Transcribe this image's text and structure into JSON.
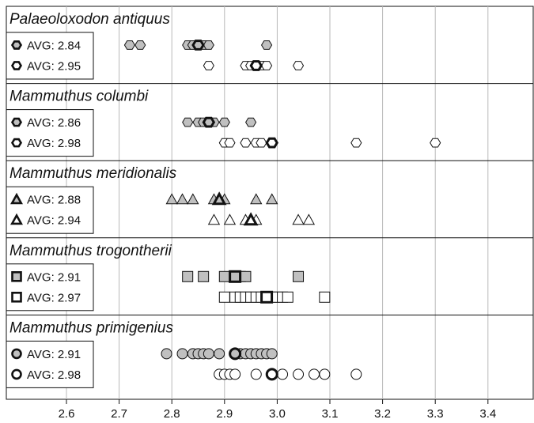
{
  "chart_data": {
    "type": "scatter",
    "title": "",
    "xlabel": "",
    "ylabel": "",
    "xlim": [
      2.5,
      3.5
    ],
    "xticks": [
      2.6,
      2.7,
      2.8,
      2.9,
      3.0,
      3.1,
      3.2,
      3.3,
      3.4
    ],
    "tick_labels": [
      "2.6",
      "2.7",
      "2.8",
      "2.9",
      "3.0",
      "3.1",
      "3.2",
      "3.3",
      "3.4"
    ],
    "grid": "vertical",
    "colors": {
      "filled": "#c0c0c0",
      "open": "#ffffff",
      "stroke": "#111111",
      "grid": "#b8b8b8"
    },
    "groups": [
      {
        "species": "Palaeoloxodon antiquus",
        "marker": "hexagon",
        "series": [
          {
            "legend": "AVG: 2.84",
            "avg": 2.85,
            "fill": "filled",
            "values": [
              2.72,
              2.74,
              2.83,
              2.84,
              2.86,
              2.87,
              2.98
            ]
          },
          {
            "legend": "AVG: 2.95",
            "avg": 2.96,
            "fill": "open",
            "values": [
              2.87,
              2.94,
              2.95,
              2.96,
              2.97,
              2.98,
              3.04
            ]
          }
        ]
      },
      {
        "species": "Mammuthus columbi",
        "marker": "hexagon",
        "series": [
          {
            "legend": "AVG: 2.86",
            "avg": 2.87,
            "fill": "filled",
            "values": [
              2.83,
              2.85,
              2.86,
              2.88,
              2.9,
              2.95
            ]
          },
          {
            "legend": "AVG: 2.98",
            "avg": 2.99,
            "fill": "open",
            "values": [
              2.9,
              2.91,
              2.94,
              2.96,
              2.97,
              2.99,
              3.15,
              3.3
            ]
          }
        ]
      },
      {
        "species": "Mammuthus meridionalis",
        "marker": "triangle",
        "series": [
          {
            "legend": "AVG: 2.88",
            "avg": 2.89,
            "fill": "filled",
            "values": [
              2.8,
              2.82,
              2.84,
              2.88,
              2.89,
              2.9,
              2.96,
              2.99
            ]
          },
          {
            "legend": "AVG: 2.94",
            "avg": 2.95,
            "fill": "open",
            "values": [
              2.88,
              2.91,
              2.94,
              2.95,
              2.96,
              3.04,
              3.06
            ]
          }
        ]
      },
      {
        "species": "Mammuthus trogontherii",
        "marker": "square",
        "series": [
          {
            "legend": "AVG: 2.91",
            "avg": 2.92,
            "fill": "filled",
            "values": [
              2.83,
              2.86,
              2.9,
              2.92,
              2.93,
              2.94,
              3.04
            ]
          },
          {
            "legend": "AVG: 2.97",
            "avg": 2.98,
            "fill": "open",
            "values": [
              2.9,
              2.92,
              2.93,
              2.94,
              2.95,
              2.96,
              2.97,
              2.98,
              2.99,
              3.0,
              3.01,
              3.02,
              3.09
            ]
          }
        ]
      },
      {
        "species": "Mammuthus primigenius",
        "marker": "circle",
        "series": [
          {
            "legend": "AVG: 2.91",
            "avg": 2.92,
            "fill": "filled",
            "values": [
              2.79,
              2.82,
              2.84,
              2.85,
              2.86,
              2.87,
              2.89,
              2.92,
              2.93,
              2.94,
              2.95,
              2.96,
              2.97,
              2.98,
              2.99
            ]
          },
          {
            "legend": "AVG: 2.98",
            "avg": 2.99,
            "fill": "open",
            "values": [
              2.89,
              2.9,
              2.91,
              2.92,
              2.96,
              2.99,
              3.01,
              3.04,
              3.07,
              3.09,
              3.15
            ]
          }
        ]
      }
    ]
  }
}
